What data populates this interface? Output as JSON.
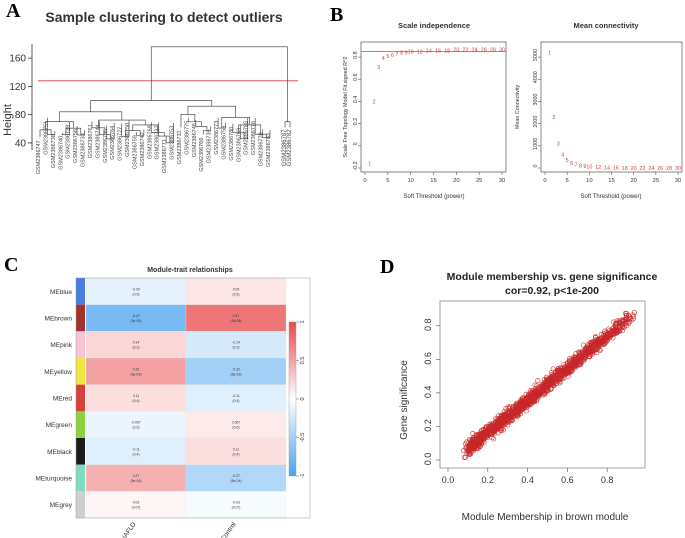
{
  "panels": {
    "a": {
      "letter": "A",
      "title": "Sample clustering to detect outliers",
      "ylabel": "Height",
      "yticks": [
        "40",
        "80",
        "120",
        "160"
      ],
      "cut_height": 128,
      "outlier_labels": [
        "GSM2386787",
        "GSM2386782"
      ],
      "leaf_labels": [
        "GSM2386747",
        "GSM2386751",
        "GSM2386738",
        "GSM2386740",
        "GSM2386729",
        "GSM2386756",
        "GSM2386733",
        "GSM2386761",
        "GSM2386744",
        "GSM2386735",
        "GSM2386764",
        "GSM2386727",
        "GSM2386750",
        "GSM2386759",
        "GSM2386742",
        "GSM2386768",
        "GSM2386737",
        "GSM2386771",
        "GSM2386753",
        "GSM2386731",
        "GSM2386775",
        "GSM2386746",
        "GSM2386766",
        "GSM2386739",
        "GSM2386773",
        "GSM2386758",
        "GSM2386780",
        "GSM2386763",
        "GSM2386785",
        "GSM2386776",
        "GSM2386770",
        "GSM2386783"
      ]
    },
    "b": {
      "letter": "B",
      "left": {
        "title": "Scale independence",
        "xlabel": "Soft Threshold (power)",
        "ylabel": "Scale Free Topology Model Fit,signed R^2",
        "xticks": [
          "0",
          "5",
          "10",
          "15",
          "20",
          "25",
          "30"
        ],
        "yticks": [
          "-0.2",
          "0",
          "0.2",
          "0.4",
          "0.6",
          "0.8"
        ],
        "threshold_line": 0.85
      },
      "right": {
        "title": "Mean connectivity",
        "xlabel": "Soft Threshold (power)",
        "ylabel": "Mean Connectivity",
        "xticks": [
          "0",
          "5",
          "10",
          "15",
          "20",
          "25",
          "30"
        ],
        "yticks": [
          "0",
          "1000",
          "2000",
          "3000",
          "4000",
          "5000"
        ]
      }
    },
    "c": {
      "letter": "C",
      "title": "Module-trait relationships",
      "traits": [
        "NAFLD",
        "Control"
      ],
      "legend_ticks": [
        "1",
        "0.5",
        "0",
        "-0.5",
        "-1"
      ],
      "modules": [
        {
          "name": "MEblue",
          "swatch": "#4a7de0",
          "cells": [
            {
              "r": -0.09,
              "t1": "-0.09",
              "t2": "(0.5)"
            },
            {
              "r": 0.09,
              "t1": "0.09",
              "t2": "(0.5)"
            }
          ]
        },
        {
          "name": "MEbrown",
          "swatch": "#a2332a",
          "cells": [
            {
              "r": -0.47,
              "t1": "-0.47",
              "t2": "(3e-05)"
            },
            {
              "r": 0.47,
              "t1": "0.47",
              "t2": "(3e-05)"
            }
          ]
        },
        {
          "name": "MEpink",
          "swatch": "#f6c6d8",
          "cells": [
            {
              "r": 0.14,
              "t1": "0.14",
              "t2": "(0.3)"
            },
            {
              "r": -0.14,
              "t1": "-0.14",
              "t2": "(0.3)"
            }
          ]
        },
        {
          "name": "MEyellow",
          "swatch": "#f1e640",
          "cells": [
            {
              "r": 0.32,
              "t1": "0.32",
              "t2": "(5e-03)"
            },
            {
              "r": -0.32,
              "t1": "-0.32",
              "t2": "(5e-03)"
            }
          ]
        },
        {
          "name": "MEred",
          "swatch": "#d8413a",
          "cells": [
            {
              "r": 0.11,
              "t1": "0.11",
              "t2": "(0.4)"
            },
            {
              "r": -0.11,
              "t1": "-0.11",
              "t2": "(0.4)"
            }
          ]
        },
        {
          "name": "MEgreen",
          "swatch": "#8ed13d",
          "cells": [
            {
              "r": -0.067,
              "t1": "-0.067",
              "t2": "(0.6)"
            },
            {
              "r": 0.067,
              "t1": "0.067",
              "t2": "(0.6)"
            }
          ]
        },
        {
          "name": "MEblack",
          "swatch": "#1b1b1b",
          "cells": [
            {
              "r": -0.11,
              "t1": "-0.11",
              "t2": "(0.4)"
            },
            {
              "r": 0.11,
              "t1": "0.11",
              "t2": "(0.4)"
            }
          ]
        },
        {
          "name": "MEturquoise",
          "swatch": "#7fdcc2",
          "cells": [
            {
              "r": 0.27,
              "t1": "0.27",
              "t2": "(5e-04)"
            },
            {
              "r": -0.27,
              "t1": "-0.27",
              "t2": "(5e-04)"
            }
          ]
        },
        {
          "name": "MEgrey",
          "swatch": "#cfcfcf",
          "cells": [
            {
              "r": 0.03,
              "t1": "0.03",
              "t2": "(0.07)"
            },
            {
              "r": -0.03,
              "t1": "-0.03",
              "t2": "(0.07)"
            }
          ]
        }
      ]
    },
    "d": {
      "letter": "D",
      "title": "Module membership vs. gene significance",
      "subtitle": "cor=0.92, p<1e-200",
      "xlabel": "Module Membership in brown module",
      "ylabel": "Gene significance",
      "xticks": [
        "0.0",
        "0.2",
        "0.4",
        "0.6",
        "0.8"
      ],
      "yticks": [
        "0.0",
        "0.2",
        "0.4",
        "0.6",
        "0.8"
      ]
    }
  },
  "chart_data": [
    {
      "type": "dendrogram",
      "title": "Sample clustering to detect outliers",
      "ylabel": "Height",
      "ylim": [
        30,
        180
      ],
      "cut_height": 128,
      "outlier_merge_height": 176,
      "outlier_samples": [
        "GSM2386787",
        "GSM2386782"
      ]
    },
    {
      "type": "scatter",
      "title": "Scale independence",
      "xlabel": "Soft Threshold (power)",
      "ylabel": "Scale Free Topology Model Fit,signed R^2",
      "xlim": [
        0,
        30
      ],
      "ylim": [
        -0.2,
        0.9
      ],
      "powers": [
        1,
        2,
        3,
        4,
        5,
        6,
        7,
        8,
        9,
        10,
        12,
        14,
        16,
        18,
        20,
        22,
        24,
        26,
        28,
        30
      ],
      "values": [
        -0.16,
        0.4,
        0.71,
        0.79,
        0.81,
        0.82,
        0.83,
        0.84,
        0.84,
        0.85,
        0.85,
        0.86,
        0.86,
        0.86,
        0.87,
        0.87,
        0.87,
        0.87,
        0.87,
        0.87
      ],
      "threshold": 0.85
    },
    {
      "type": "scatter",
      "title": "Mean connectivity",
      "xlabel": "Soft Threshold (power)",
      "ylabel": "Mean Connectivity",
      "xlim": [
        0,
        30
      ],
      "ylim": [
        0,
        5500
      ],
      "powers": [
        1,
        2,
        3,
        4,
        5,
        6,
        7,
        8,
        9,
        10,
        12,
        14,
        16,
        18,
        20,
        22,
        24,
        26,
        28,
        30
      ],
      "values": [
        5200,
        2300,
        1100,
        600,
        360,
        230,
        160,
        110,
        80,
        60,
        35,
        22,
        15,
        11,
        8,
        6,
        5,
        4,
        3,
        2
      ]
    },
    {
      "type": "heatmap",
      "title": "Module-trait relationships",
      "rows": [
        "MEblue",
        "MEbrown",
        "MEpink",
        "MEyellow",
        "MEred",
        "MEgreen",
        "MEblack",
        "MEturquoise",
        "MEgrey"
      ],
      "columns": [
        "NAFLD",
        "Control"
      ],
      "values": [
        [
          -0.09,
          0.09
        ],
        [
          -0.47,
          0.47
        ],
        [
          0.14,
          -0.14
        ],
        [
          0.32,
          -0.32
        ],
        [
          0.11,
          -0.11
        ],
        [
          -0.067,
          0.067
        ],
        [
          -0.11,
          0.11
        ],
        [
          0.27,
          -0.27
        ],
        [
          0.03,
          -0.03
        ]
      ],
      "range": [
        -1,
        1
      ]
    },
    {
      "type": "scatter",
      "title": "Module membership vs. gene significance",
      "subtitle": "cor=0.92, p<1e-200",
      "xlabel": "Module Membership in brown module",
      "ylabel": "Gene significance",
      "xlim": [
        0.0,
        0.95
      ],
      "ylim": [
        0.0,
        0.9
      ],
      "correlation": 0.92,
      "trend": {
        "x0": 0.05,
        "y0": 0.02,
        "x1": 0.93,
        "y1": 0.86
      },
      "n_points": 1400,
      "color": "#c8282a"
    }
  ]
}
